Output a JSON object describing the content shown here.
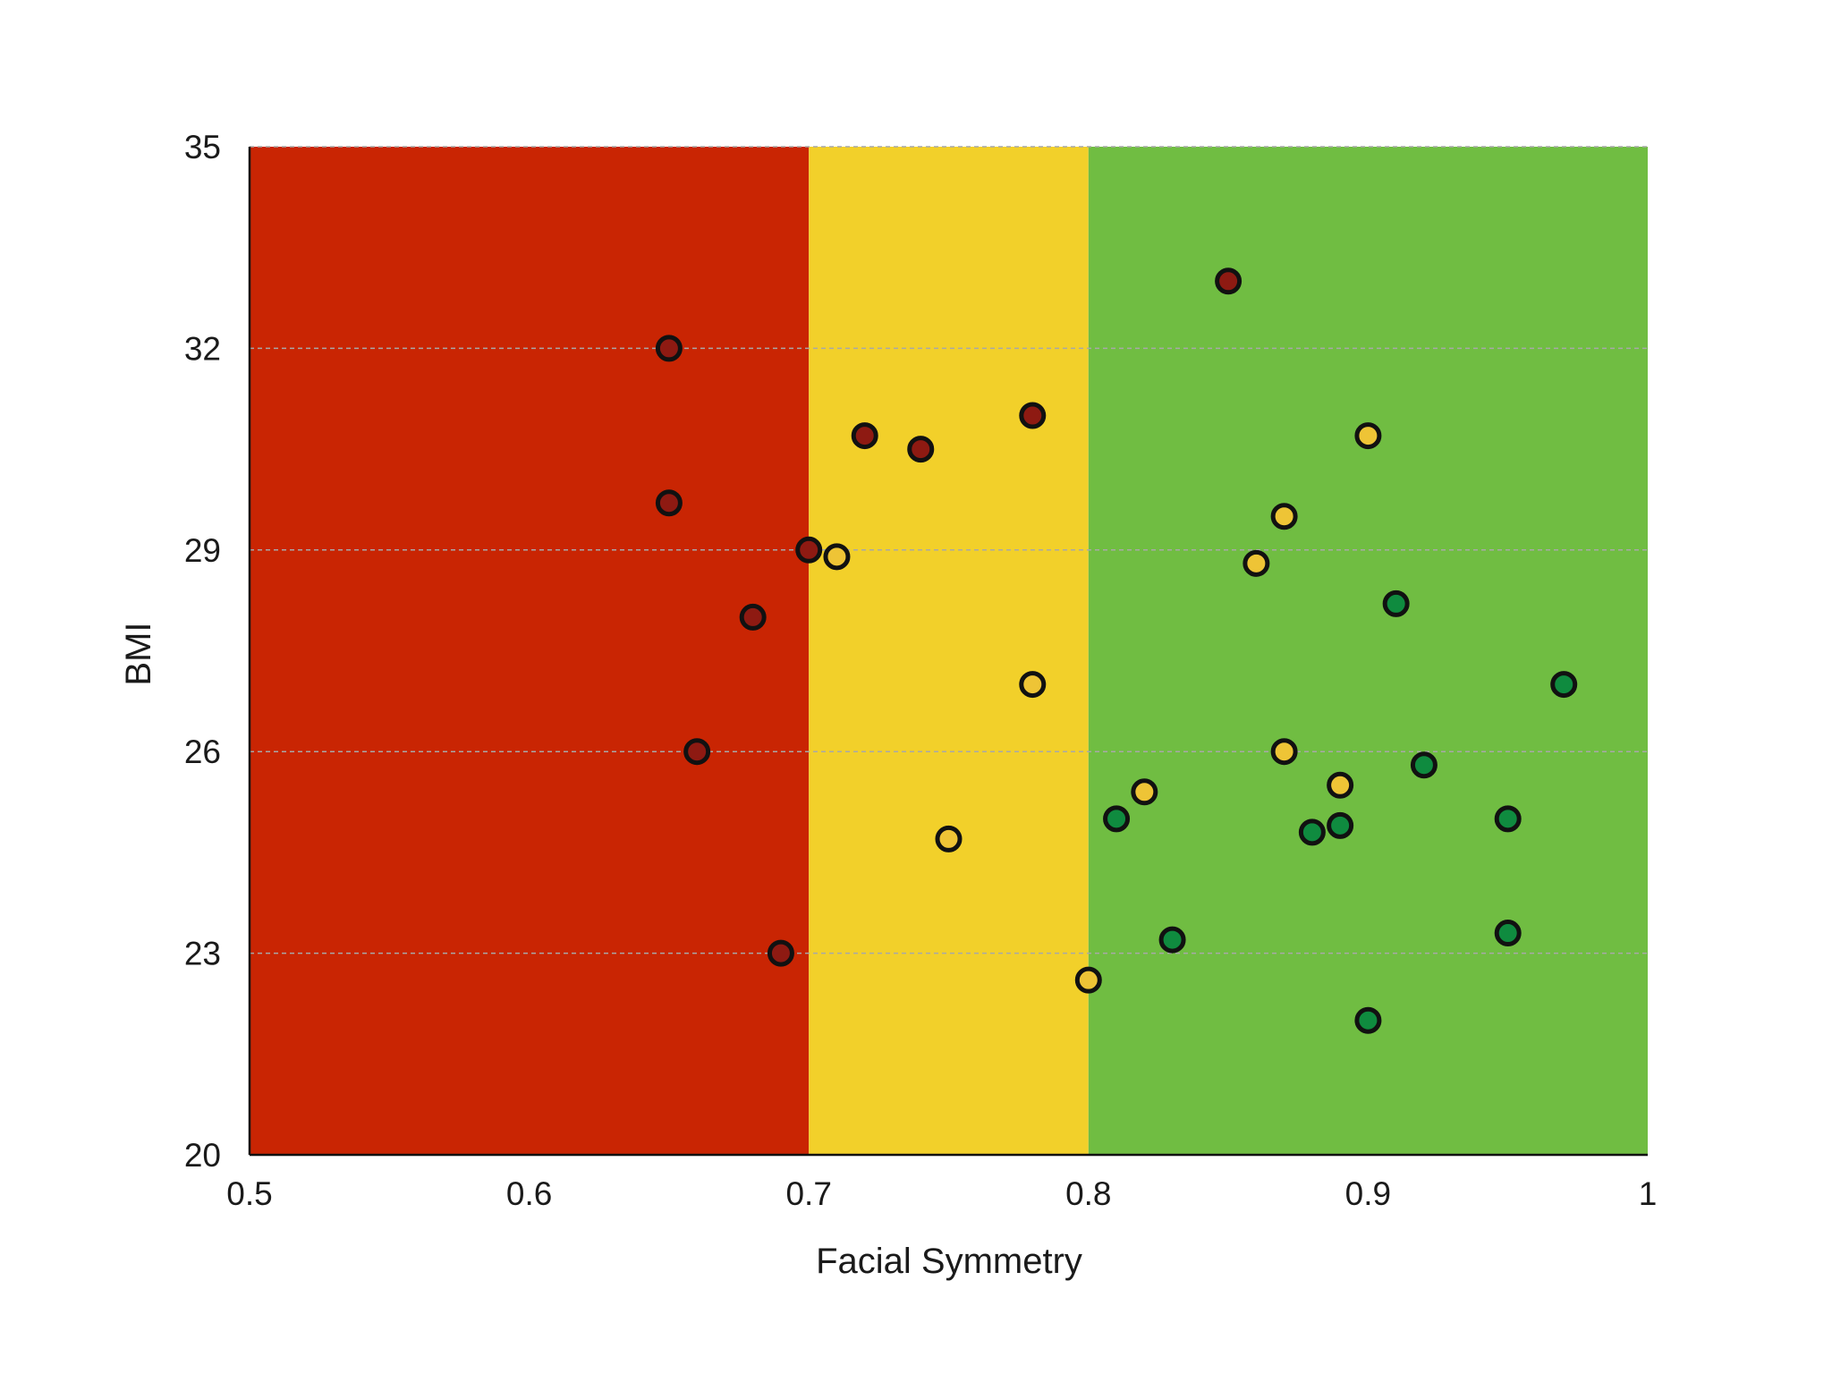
{
  "chart_data": {
    "type": "scatter",
    "title": "",
    "xlabel": "Facial Symmetry",
    "ylabel": "BMI",
    "xlim": [
      0.5,
      1.0
    ],
    "ylim": [
      20,
      35
    ],
    "xticks": [
      {
        "value": 0.5,
        "label": "0.5"
      },
      {
        "value": 0.6,
        "label": "0.6"
      },
      {
        "value": 0.7,
        "label": "0.7"
      },
      {
        "value": 0.8,
        "label": "0.8"
      },
      {
        "value": 0.9,
        "label": "0.9"
      },
      {
        "value": 1.0,
        "label": "1"
      }
    ],
    "yticks": [
      {
        "value": 20,
        "label": "20"
      },
      {
        "value": 23,
        "label": "23"
      },
      {
        "value": 26,
        "label": "26"
      },
      {
        "value": 29,
        "label": "29"
      },
      {
        "value": 32,
        "label": "32"
      },
      {
        "value": 35,
        "label": "35"
      }
    ],
    "grid": "horizontal dashed",
    "legend": "none",
    "background_bands": [
      {
        "from": 0.5,
        "to": 0.7,
        "color": "#c92503"
      },
      {
        "from": 0.7,
        "to": 0.8,
        "color": "#f2d02a"
      },
      {
        "from": 0.8,
        "to": 1.0,
        "color": "#70bd42"
      }
    ],
    "series": [
      {
        "color": "#8e1a12",
        "points": [
          {
            "x": 0.65,
            "y": 32.0
          },
          {
            "x": 0.65,
            "y": 29.7
          },
          {
            "x": 0.7,
            "y": 29.0
          },
          {
            "x": 0.68,
            "y": 28.0
          },
          {
            "x": 0.66,
            "y": 26.0
          },
          {
            "x": 0.69,
            "y": 23.0
          },
          {
            "x": 0.72,
            "y": 30.7
          },
          {
            "x": 0.74,
            "y": 30.5
          },
          {
            "x": 0.78,
            "y": 31.0
          },
          {
            "x": 0.85,
            "y": 33.0
          }
        ]
      },
      {
        "color": "#eec436",
        "points": [
          {
            "x": 0.71,
            "y": 28.9
          },
          {
            "x": 0.78,
            "y": 27.0
          },
          {
            "x": 0.75,
            "y": 24.7
          },
          {
            "x": 0.8,
            "y": 22.6
          },
          {
            "x": 0.82,
            "y": 25.4
          },
          {
            "x": 0.86,
            "y": 28.8
          },
          {
            "x": 0.87,
            "y": 29.5
          },
          {
            "x": 0.9,
            "y": 30.7
          },
          {
            "x": 0.87,
            "y": 26.0
          },
          {
            "x": 0.89,
            "y": 25.5
          }
        ]
      },
      {
        "color": "#0f8b3f",
        "points": [
          {
            "x": 0.81,
            "y": 25.0
          },
          {
            "x": 0.83,
            "y": 23.2
          },
          {
            "x": 0.88,
            "y": 24.8
          },
          {
            "x": 0.89,
            "y": 24.9
          },
          {
            "x": 0.91,
            "y": 28.2
          },
          {
            "x": 0.92,
            "y": 25.8
          },
          {
            "x": 0.9,
            "y": 22.0
          },
          {
            "x": 0.95,
            "y": 25.0
          },
          {
            "x": 0.95,
            "y": 23.3
          },
          {
            "x": 0.97,
            "y": 27.0
          }
        ]
      }
    ]
  }
}
